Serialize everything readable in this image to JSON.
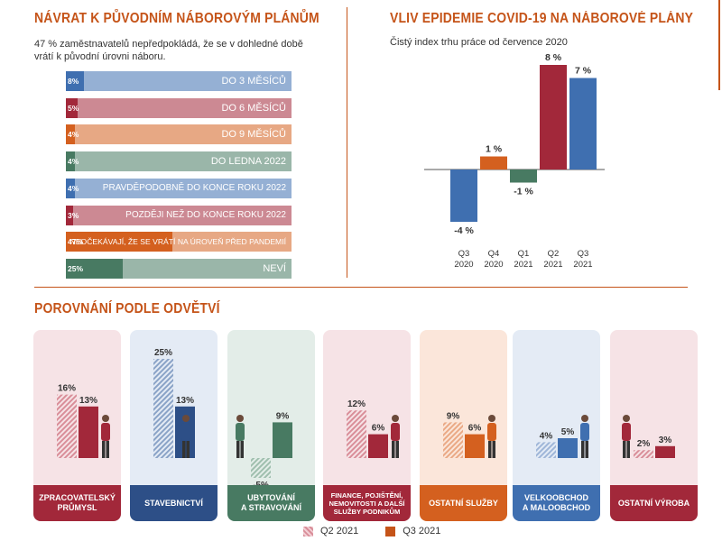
{
  "left_panel": {
    "title": "NÁVRAT K PŮVODNÍM NÁBOROVÝM PLÁNŮM",
    "subtitle": "47 % zaměstnavatelů nepředpokládá, že se v dohledné době vrátí k původní úrovni náboru."
  },
  "right_panel": {
    "title": "VLIV EPIDEMIE COVID-19 NA NÁBOROVÉ PLÁNY",
    "subtitle": "Čistý index trhu práce od července 2020"
  },
  "bottom_panel": {
    "title": "POROVNÁNÍ PODLE ODVĚTVÍ"
  },
  "legend": {
    "q2": "Q2 2021",
    "q3": "Q3 2021"
  },
  "colors": {
    "accent": "#c55419",
    "blue": "#3f6fb0",
    "red": "#a2283a",
    "orange": "#d4601f",
    "green": "#487a62",
    "q2_red": "#d98e99",
    "q3_red": "#a2283a"
  },
  "chart_data": [
    {
      "type": "bar",
      "orientation": "horizontal",
      "categories": [
        "DO 3 MĚSÍCŮ",
        "DO 6 MĚSÍCŮ",
        "DO 9 MĚSÍCŮ",
        "DO LEDNA 2022",
        "PRAVDĚPODOBNĚ DO KONCE ROKU 2022",
        "POZDĚJI NEŽ DO KONCE ROKU 2022",
        "NEOČEKÁVAJÍ, ŽE SE VRÁTÍ NA ÚROVEŇ PŘED PANDEMIÍ",
        "NEVÍ"
      ],
      "values": [
        8,
        5,
        4,
        4,
        4,
        3,
        47,
        25
      ],
      "value_labels": [
        "8%",
        "5%",
        "4%",
        "4%",
        "4%",
        "3%",
        "47%",
        "25%"
      ],
      "colors": [
        "#3f6fb0",
        "#a2283a",
        "#d4601f",
        "#487a62",
        "#3f6fb0",
        "#a2283a",
        "#d4601f",
        "#487a62"
      ],
      "title": "NÁVRAT K PŮVODNÍM NÁBOROVÝM PLÁNŮM"
    },
    {
      "type": "bar",
      "categories": [
        "Q3 2020",
        "Q4 2020",
        "Q1 2021",
        "Q2 2021",
        "Q3 2021"
      ],
      "category_lines": [
        [
          "Q3",
          "2020"
        ],
        [
          "Q4",
          "2020"
        ],
        [
          "Q1",
          "2021"
        ],
        [
          "Q2",
          "2021"
        ],
        [
          "Q3",
          "2021"
        ]
      ],
      "values": [
        -4,
        1,
        -1,
        8,
        7
      ],
      "value_labels": [
        "-4 %",
        "1 %",
        "-1 %",
        "8 %",
        "7 %"
      ],
      "colors": [
        "#3f6fb0",
        "#d4601f",
        "#487a62",
        "#a2283a",
        "#3f6fb0"
      ],
      "ylim": [
        -5,
        9
      ],
      "title": "VLIV EPIDEMIE COVID-19 NA NÁBOROVÉ PLÁNY"
    },
    {
      "type": "bar",
      "title": "POROVNÁNÍ PODLE ODVĚTVÍ",
      "series_names": [
        "Q2 2021",
        "Q3 2021"
      ],
      "sectors": [
        {
          "name": "ZPRACOVATELSKÝ PRŮMYSL",
          "lines": [
            "ZPRACOVATELSKÝ",
            "PRŮMYSL"
          ],
          "q2": 16,
          "q3": 13,
          "q2_label": "16%",
          "q3_label": "13%",
          "bg": "#f6e3e6",
          "dark": "#a2283a",
          "light": "#d98e99"
        },
        {
          "name": "STAVEBNICTVÍ",
          "lines": [
            "STAVEBNICTVÍ"
          ],
          "q2": 25,
          "q3": 13,
          "q2_label": "25%",
          "q3_label": "13%",
          "bg": "#e4ebf5",
          "dark": "#2d4f87",
          "light": "#8aa3c7"
        },
        {
          "name": "UBYTOVÁNÍ A STRAVOVÁNÍ",
          "lines": [
            "UBYTOVÁNÍ",
            "A STRAVOVÁNÍ"
          ],
          "q2": -5,
          "q3": 9,
          "q2_label": "-5%",
          "q3_label": "9%",
          "bg": "#e3ede8",
          "dark": "#487a62",
          "light": "#9fbfae"
        },
        {
          "name": "FINANCE, POJIŠTĚNÍ, NEMOVITOSTI A DALŠÍ SLUŽBY PODNIKŮM",
          "lines": [
            "FINANCE, POJIŠTĚNÍ,",
            "NEMOVITOSTI A DALŠÍ",
            "SLUŽBY PODNIKŮM"
          ],
          "q2": 12,
          "q3": 6,
          "q2_label": "12%",
          "q3_label": "6%",
          "bg": "#f6e3e6",
          "dark": "#a2283a",
          "light": "#d98e99"
        },
        {
          "name": "OSTATNÍ SLUŽBY",
          "lines": [
            "OSTATNÍ SLUŽBY"
          ],
          "q2": 9,
          "q3": 6,
          "q2_label": "9%",
          "q3_label": "6%",
          "bg": "#fbe6da",
          "dark": "#d4601f",
          "light": "#eaa985"
        },
        {
          "name": "VELKOOBCHOD A MALOOBCHOD",
          "lines": [
            "VELKOOBCHOD",
            "A MALOOBCHOD"
          ],
          "q2": 4,
          "q3": 5,
          "q2_label": "4%",
          "q3_label": "5%",
          "bg": "#e4ebf5",
          "dark": "#3f6fb0",
          "light": "#9fb6d8"
        },
        {
          "name": "OSTATNÍ VÝROBA",
          "lines": [
            "OSTATNÍ VÝROBA"
          ],
          "q2": 2,
          "q3": 3,
          "q2_label": "2%",
          "q3_label": "3%",
          "bg": "#f6e3e6",
          "dark": "#a2283a",
          "light": "#d98e99"
        }
      ]
    }
  ]
}
